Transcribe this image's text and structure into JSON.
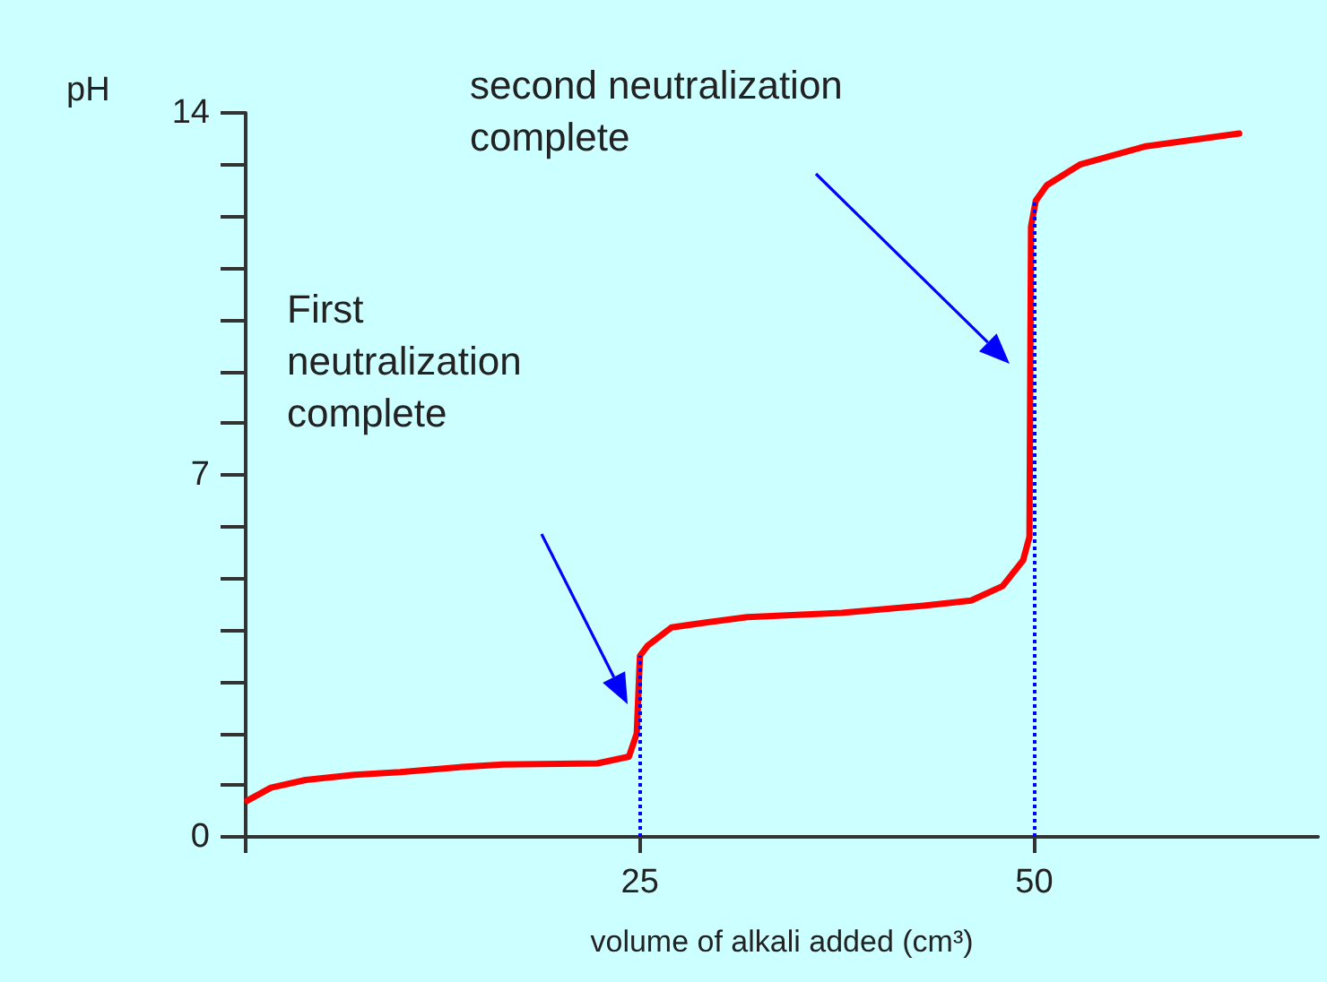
{
  "chart_data": {
    "type": "line",
    "xlabel": "volume of alkali added (cm³)",
    "ylabel": "pH",
    "x": [
      0.1,
      1.6,
      3.8,
      6.9,
      9.8,
      13.7,
      16.3,
      22.3,
      24.3,
      24.8,
      25,
      25.5,
      27,
      29.3,
      31.8,
      37.8,
      43,
      46,
      48,
      49.3,
      49.7,
      49.8,
      50.1,
      50.8,
      52.9,
      57,
      63
    ],
    "series": [
      {
        "color": "#ff0000",
        "values": [
          0.7,
          0.95,
          1.1,
          1.2,
          1.25,
          1.35,
          1.4,
          1.42,
          1.55,
          2.0,
          3.5,
          3.7,
          4.05,
          4.15,
          4.25,
          4.33,
          4.47,
          4.57,
          4.85,
          5.35,
          5.8,
          11.8,
          12.3,
          12.6,
          13.0,
          13.35,
          13.6
        ]
      }
    ],
    "xlim": [
      0,
      68
    ],
    "xticks": [
      {
        "value": 0,
        "label": null
      },
      25,
      50
    ],
    "ylim": [
      0,
      14
    ],
    "yticks": [
      0,
      {
        "value": 1,
        "label": null
      },
      {
        "value": 2,
        "label": null
      },
      {
        "value": 3,
        "label": null
      },
      {
        "value": 4,
        "label": null
      },
      {
        "value": 5,
        "label": null
      },
      {
        "value": 6,
        "label": null
      },
      7,
      {
        "value": 8,
        "label": null
      },
      {
        "value": 9,
        "label": null
      },
      {
        "value": 10,
        "label": null
      },
      {
        "value": 11,
        "label": null
      },
      {
        "value": 12,
        "label": null
      },
      {
        "value": 13,
        "label": null
      },
      14
    ],
    "ref_lines": [
      {
        "axis": "x",
        "value": 25,
        "color": "#0000ff",
        "line_style": "dotted"
      },
      {
        "axis": "x",
        "value": 50,
        "color": "#0000ff",
        "line_style": "dotted"
      }
    ],
    "annotations": [
      "First neutralization complete",
      "second neutralization complete"
    ],
    "grid": false,
    "marker": "none",
    "line_style": "solid"
  }
}
